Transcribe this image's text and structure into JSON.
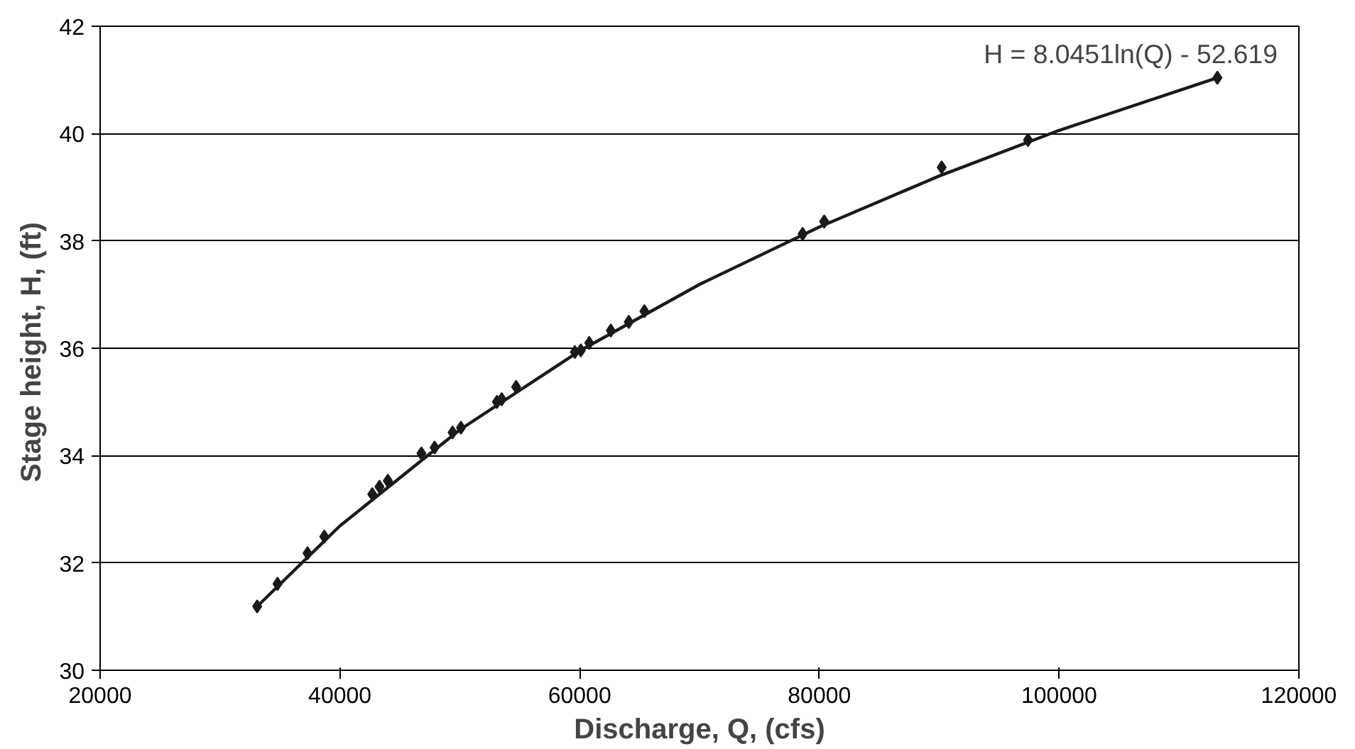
{
  "chart_data": {
    "type": "scatter",
    "xlabel": "Discharge, Q, (cfs)",
    "ylabel": "Stage height, H,  (ft)",
    "xlim": [
      20000,
      120000
    ],
    "xticks": [
      20000,
      40000,
      60000,
      80000,
      100000,
      120000
    ],
    "ylim": [
      30,
      42
    ],
    "yticks": [
      30,
      32,
      34,
      36,
      38,
      40,
      42
    ],
    "grid": "y",
    "marker": "diamond",
    "annotations": [
      "H = 8.0451ln(Q) - 52.619"
    ],
    "series": [
      {
        "color": "#1a1a1a",
        "x": [
          33100,
          34800,
          37300,
          38700,
          42700,
          43300,
          44000,
          46800,
          47900,
          49400,
          50100,
          53100,
          53500,
          54700,
          59600,
          60100,
          60800,
          62600,
          64100,
          65400,
          78600,
          80400,
          90200,
          97400,
          113200
        ],
        "values": [
          31.19,
          31.61,
          32.18,
          32.49,
          33.28,
          33.42,
          33.53,
          34.04,
          34.15,
          34.43,
          34.52,
          35.0,
          35.05,
          35.28,
          35.93,
          35.96,
          36.1,
          36.33,
          36.49,
          36.69,
          38.13,
          38.36,
          39.37,
          39.88,
          41.04
        ]
      },
      {
        "type": "line",
        "color": "#1a1a1a",
        "line_style": "solid",
        "marker": "none",
        "x": [
          33100,
          40000,
          50000,
          60000,
          70000,
          80000,
          90000,
          100000,
          113200
        ],
        "values": [
          31.19,
          32.69,
          34.48,
          35.95,
          37.19,
          38.26,
          39.21,
          40.06,
          41.04
        ]
      }
    ]
  }
}
